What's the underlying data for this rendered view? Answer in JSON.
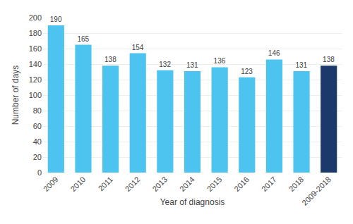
{
  "chart_data": {
    "type": "bar",
    "categories": [
      "2009",
      "2010",
      "2011",
      "2012",
      "2013",
      "2014",
      "2015",
      "2016",
      "2017",
      "2018",
      "2009-2018"
    ],
    "values": [
      190,
      165,
      138,
      154,
      132,
      131,
      136,
      123,
      146,
      131,
      138
    ],
    "colors": [
      "#4DC3F0",
      "#4DC3F0",
      "#4DC3F0",
      "#4DC3F0",
      "#4DC3F0",
      "#4DC3F0",
      "#4DC3F0",
      "#4DC3F0",
      "#4DC3F0",
      "#4DC3F0",
      "#1B3A6B"
    ],
    "xlabel": "Year of diagnosis",
    "ylabel": "Number of days",
    "ylim": [
      0,
      200
    ],
    "yticks": [
      0,
      20,
      40,
      60,
      80,
      100,
      120,
      140,
      160,
      180,
      200
    ],
    "grid": true,
    "data_labels": true
  }
}
